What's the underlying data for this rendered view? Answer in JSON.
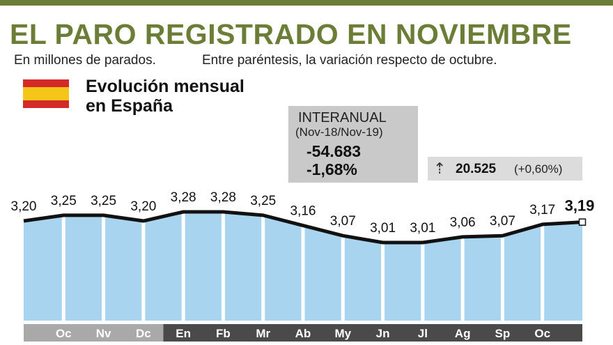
{
  "header": {
    "title": "EL PARO REGISTRADO EN NOVIEMBRE",
    "subtitle_left": "En millones de parados.",
    "subtitle_right": "Entre paréntesis, la variación respecto de octubre."
  },
  "section": {
    "title_line1": "Evolución mensual",
    "title_line2": "en España"
  },
  "interanual": {
    "label": "INTERANUAL",
    "period": "(Nov-18/Nov-19)",
    "value_abs": "-54.683",
    "value_pct": "-1,68%"
  },
  "monthly_change": {
    "value": "20.525",
    "pct": "(+0,60%)",
    "icon": "up-arrow-icon"
  },
  "colors": {
    "accent": "#6b7d37",
    "bar_fill": "#a9d4ef",
    "line": "#111111",
    "axis_dark": "#4a4a4a",
    "axis_light": "#a9a9a9",
    "flag_red": "#d42a2a",
    "flag_yellow": "#f5c518"
  },
  "chart_data": {
    "type": "area",
    "categories": [
      "Nv",
      "Oc",
      "Nv",
      "Dc",
      "En",
      "Fb",
      "Mr",
      "Ab",
      "My",
      "Jn",
      "Jl",
      "Ag",
      "Sp",
      "Oc",
      "Nv"
    ],
    "axis_labels": [
      "",
      "Oc",
      "Nv",
      "Dc",
      "En",
      "Fb",
      "Mr",
      "Ab",
      "My",
      "Jn",
      "Jl",
      "Ag",
      "Sp",
      "Oc",
      ""
    ],
    "values": [
      3.2,
      3.25,
      3.25,
      3.2,
      3.28,
      3.28,
      3.25,
      3.16,
      3.07,
      3.01,
      3.01,
      3.06,
      3.07,
      3.17,
      3.19
    ],
    "value_labels": [
      "3,20",
      "3,25",
      "3,25",
      "3,20",
      "3,28",
      "3,28",
      "3,25",
      "3,16",
      "3,07",
      "3,01",
      "3,01",
      "3,06",
      "3,07",
      "3,17",
      "3,19"
    ],
    "highlight_last": true,
    "grid": false,
    "legend": "none"
  }
}
